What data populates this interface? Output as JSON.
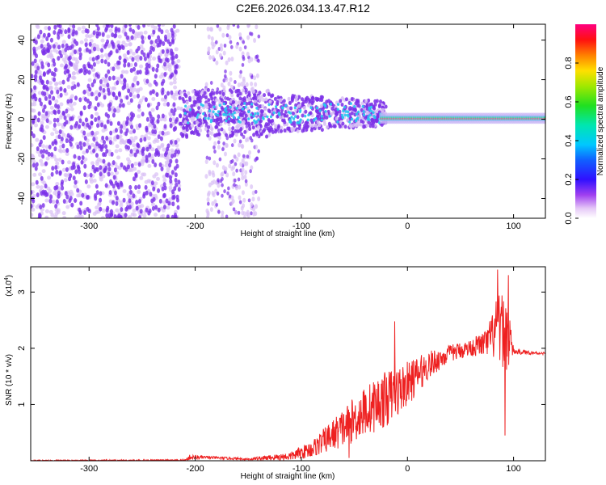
{
  "title": "C2E6.2026.034.13.47.R12",
  "colors": {
    "snr_line": "#ee2020",
    "spec_base": "#7b2fe8",
    "spec_light": "#d8bff5",
    "spec_core": "#ff2040",
    "spec_mid": "#29c6f0",
    "spec_hi": "#1edc4a"
  },
  "chart_data": [
    {
      "type": "heatmap",
      "title": "C2E6.2026.034.13.47.R12",
      "xlabel": "Height of straight line (km)",
      "ylabel": "Frequency (Hz)",
      "xlim": [
        -355,
        130
      ],
      "ylim": [
        -50,
        48
      ],
      "x_ticks": [
        -300,
        -200,
        -100,
        0,
        100
      ],
      "y_ticks": [
        -40,
        -20,
        0,
        20,
        40
      ],
      "colorbar": {
        "label": "Normalized spectral amplitude",
        "range": [
          0,
          1
        ],
        "ticks": [
          "0.0",
          "0.2",
          "0.4",
          "0.6",
          "0.8"
        ]
      },
      "regions": [
        {
          "name": "broadband noise",
          "x_range": [
            -355,
            -215
          ],
          "f_range": [
            -50,
            48
          ]
        },
        {
          "name": "gap",
          "x_range": [
            -215,
            -190
          ],
          "f_range": [
            -50,
            48
          ]
        },
        {
          "name": "patchy noise",
          "x_range": [
            -190,
            -140
          ],
          "f_range": [
            -50,
            48
          ]
        },
        {
          "name": "signal band",
          "x_range": [
            -215,
            -20
          ],
          "f_range": [
            -10,
            20
          ]
        },
        {
          "name": "narrow tone",
          "x_range": [
            -20,
            130
          ],
          "f_range": [
            -2,
            2
          ]
        }
      ]
    },
    {
      "type": "line",
      "xlabel": "Height of straight line (km)",
      "ylabel": "SNR (10 * v/v)",
      "y_multiplier": "(x10",
      "y_exponent": "4",
      "xlim": [
        -355,
        130
      ],
      "ylim": [
        0,
        3.45
      ],
      "x_ticks": [
        -300,
        -200,
        -100,
        0,
        100
      ],
      "y_ticks": [
        1,
        2,
        3
      ],
      "series": [
        {
          "name": "SNR",
          "envelope": [
            {
              "x": -355,
              "base": 0.0,
              "amp": 0.02
            },
            {
              "x": -210,
              "base": 0.0,
              "amp": 0.03
            },
            {
              "x": -205,
              "base": 0.04,
              "amp": 0.1
            },
            {
              "x": -190,
              "base": 0.05,
              "amp": 0.05
            },
            {
              "x": -150,
              "base": 0.02,
              "amp": 0.04
            },
            {
              "x": -110,
              "base": 0.05,
              "amp": 0.15
            },
            {
              "x": -90,
              "base": 0.15,
              "amp": 0.3
            },
            {
              "x": -60,
              "base": 0.45,
              "amp": 0.7
            },
            {
              "x": -40,
              "base": 0.7,
              "amp": 0.9
            },
            {
              "x": -20,
              "base": 0.9,
              "amp": 1.0
            },
            {
              "x": 0,
              "base": 1.2,
              "amp": 0.8
            },
            {
              "x": 20,
              "base": 1.6,
              "amp": 0.5
            },
            {
              "x": 40,
              "base": 1.85,
              "amp": 0.3
            },
            {
              "x": 60,
              "base": 1.95,
              "amp": 0.3
            },
            {
              "x": 75,
              "base": 2.0,
              "amp": 0.5
            },
            {
              "x": 85,
              "base": 2.1,
              "amp": 1.2
            },
            {
              "x": 95,
              "base": 2.0,
              "amp": 1.4
            },
            {
              "x": 100,
              "base": 1.92,
              "amp": 0.1
            },
            {
              "x": 130,
              "base": 1.9,
              "amp": 0.04
            }
          ],
          "spikes": [
            {
              "x": -12,
              "y": 2.48
            },
            {
              "x": 85,
              "y": 3.4
            },
            {
              "x": 95,
              "y": 3.3
            },
            {
              "x": 92,
              "y": 0.45
            },
            {
              "x": -55,
              "y": 0.05
            }
          ]
        }
      ]
    }
  ]
}
